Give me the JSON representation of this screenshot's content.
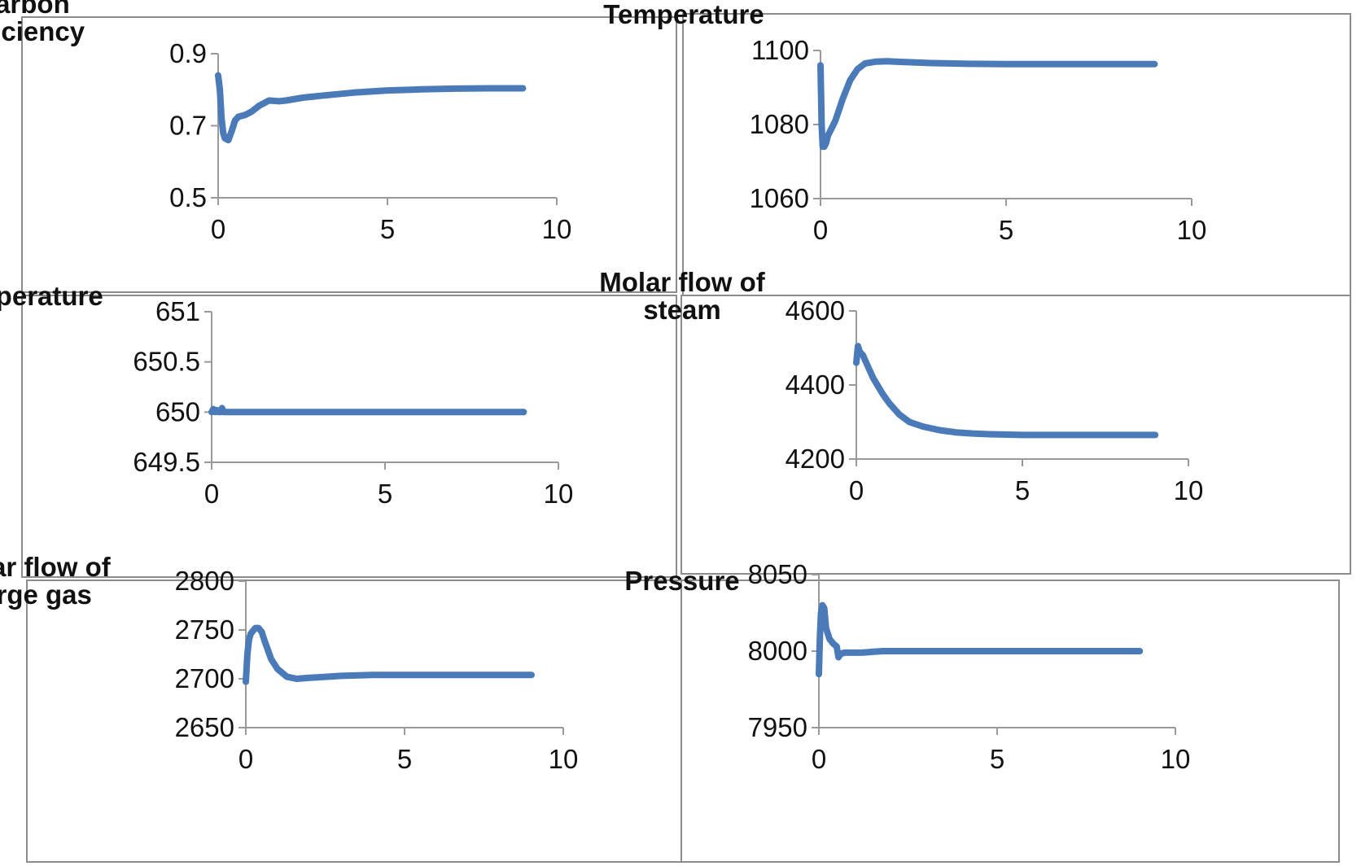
{
  "chart_data": [
    {
      "type": "line",
      "ylabel": [
        "Carbon",
        "efficiency"
      ],
      "xlim": [
        0,
        10
      ],
      "ylim": [
        0.5,
        0.9
      ],
      "xticks": [
        "0",
        "5",
        "10"
      ],
      "yticks": [
        "0.5",
        "0.7",
        "0.9"
      ],
      "series": [
        {
          "color": "#4a7ab8",
          "x": [
            0,
            0.05,
            0.1,
            0.15,
            0.2,
            0.3,
            0.4,
            0.5,
            0.6,
            0.8,
            1.0,
            1.2,
            1.5,
            1.8,
            2.0,
            2.5,
            3,
            4,
            5,
            6,
            7,
            8,
            9
          ],
          "y": [
            0.84,
            0.8,
            0.72,
            0.68,
            0.665,
            0.66,
            0.685,
            0.715,
            0.725,
            0.73,
            0.74,
            0.755,
            0.77,
            0.768,
            0.77,
            0.778,
            0.783,
            0.792,
            0.798,
            0.801,
            0.803,
            0.804,
            0.804
          ]
        }
      ]
    },
    {
      "type": "line",
      "ylabel": [
        "Temperature"
      ],
      "xlim": [
        0,
        10
      ],
      "ylim": [
        1060,
        1100
      ],
      "xticks": [
        "0",
        "5",
        "10"
      ],
      "yticks": [
        "1060",
        "1080",
        "1100"
      ],
      "series": [
        {
          "color": "#4a7ab8",
          "x": [
            0,
            0.03,
            0.06,
            0.1,
            0.15,
            0.2,
            0.3,
            0.4,
            0.5,
            0.6,
            0.8,
            1.0,
            1.2,
            1.5,
            1.8,
            2.0,
            2.5,
            3,
            4,
            5,
            6,
            7,
            8,
            9
          ],
          "y": [
            1096,
            1080,
            1074,
            1074,
            1075,
            1077,
            1079,
            1081,
            1084,
            1087,
            1092,
            1095,
            1096.5,
            1097,
            1097.1,
            1097,
            1096.8,
            1096.6,
            1096.4,
            1096.3,
            1096.3,
            1096.3,
            1096.3,
            1096.3
          ]
        }
      ]
    },
    {
      "type": "line",
      "ylabel": [
        "Temperature"
      ],
      "xlim": [
        0,
        10
      ],
      "ylim": [
        649.5,
        651
      ],
      "xticks": [
        "0",
        "5",
        "10"
      ],
      "yticks": [
        "649.5",
        "650",
        "650.5",
        "651"
      ],
      "series": [
        {
          "color": "#4a7ab8",
          "x": [
            0,
            0.05,
            0.1,
            0.15,
            0.2,
            0.25,
            0.3,
            0.35,
            0.4,
            0.5,
            1,
            2,
            3,
            4,
            5,
            6,
            7,
            8,
            9
          ],
          "y": [
            650.0,
            650.03,
            650.0,
            650.02,
            650.0,
            650.0,
            650.04,
            650.0,
            650.0,
            650.0,
            650.0,
            650.0,
            650.0,
            650.0,
            650.0,
            650.0,
            650.0,
            650.0,
            650.0
          ]
        }
      ]
    },
    {
      "type": "line",
      "ylabel": [
        "Molar flow of",
        "steam"
      ],
      "xlim": [
        0,
        10
      ],
      "ylim": [
        4200,
        4600
      ],
      "xticks": [
        "0",
        "5",
        "10"
      ],
      "yticks": [
        "4200",
        "4400",
        "4600"
      ],
      "series": [
        {
          "color": "#4a7ab8",
          "x": [
            0,
            0.05,
            0.1,
            0.2,
            0.3,
            0.5,
            0.8,
            1.0,
            1.3,
            1.6,
            2.0,
            2.5,
            3,
            3.5,
            4,
            5,
            6,
            7,
            8,
            9
          ],
          "y": [
            4460,
            4505,
            4490,
            4480,
            4460,
            4420,
            4375,
            4350,
            4320,
            4300,
            4288,
            4278,
            4272,
            4269,
            4267,
            4265,
            4265,
            4265,
            4265,
            4265
          ]
        }
      ]
    },
    {
      "type": "line",
      "ylabel": [
        "Molar flow of",
        "purge gas"
      ],
      "xlim": [
        0,
        10
      ],
      "ylim": [
        2650,
        2800
      ],
      "xticks": [
        "0",
        "5",
        "10"
      ],
      "yticks": [
        "2650",
        "2700",
        "2750",
        "2800"
      ],
      "series": [
        {
          "color": "#4a7ab8",
          "x": [
            0,
            0.05,
            0.1,
            0.15,
            0.2,
            0.3,
            0.4,
            0.5,
            0.6,
            0.8,
            1.0,
            1.3,
            1.6,
            2.0,
            2.5,
            3,
            4,
            5,
            6,
            7,
            8,
            9
          ],
          "y": [
            2697,
            2725,
            2740,
            2746,
            2748,
            2752,
            2752,
            2748,
            2738,
            2720,
            2710,
            2702,
            2700,
            2701,
            2702,
            2703,
            2704,
            2704,
            2704,
            2704,
            2704,
            2704
          ]
        }
      ]
    },
    {
      "type": "line",
      "ylabel": [
        "Pressure"
      ],
      "xlim": [
        0,
        10
      ],
      "ylim": [
        7950,
        8050
      ],
      "xticks": [
        "0",
        "5",
        "10"
      ],
      "yticks": [
        "7950",
        "8000",
        "8050"
      ],
      "series": [
        {
          "color": "#4a7ab8",
          "x": [
            0,
            0.03,
            0.06,
            0.1,
            0.15,
            0.2,
            0.3,
            0.4,
            0.5,
            0.55,
            0.6,
            0.7,
            0.9,
            1.2,
            1.5,
            1.8,
            2.0,
            2.5,
            3,
            4,
            5,
            6,
            7,
            8,
            9
          ],
          "y": [
            7985,
            8010,
            8025,
            8030,
            8028,
            8015,
            8008,
            8005,
            8003,
            7996,
            7998,
            7999,
            7999,
            7999,
            7999.5,
            8000,
            8000,
            8000,
            8000,
            8000,
            8000,
            8000,
            8000,
            8000,
            8000
          ]
        }
      ]
    }
  ]
}
